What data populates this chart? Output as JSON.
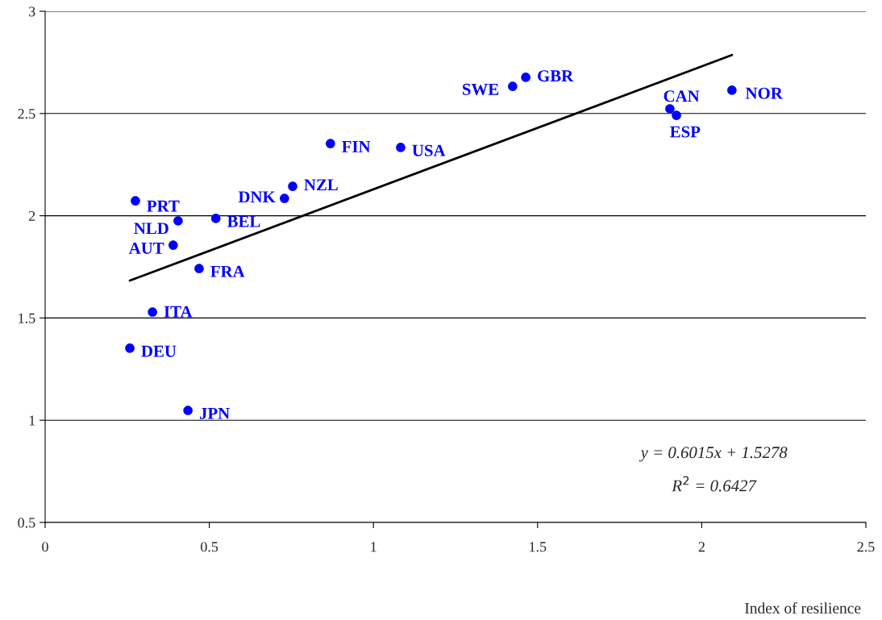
{
  "chart_data": {
    "type": "scatter",
    "xlabel": "Index of resilience",
    "xlim": [
      0,
      2.5
    ],
    "xticks": [
      0,
      0.5,
      1,
      1.5,
      2,
      2.5
    ],
    "ylim": [
      0.5,
      3
    ],
    "yticks": [
      0.5,
      1,
      1.5,
      2,
      2.5,
      3
    ],
    "grid": "y",
    "marker": "circle",
    "series": [
      {
        "color": "#0000ff",
        "x": [
          0.275,
          0.405,
          0.39,
          0.52,
          0.469,
          0.327,
          0.258,
          0.435,
          0.729,
          0.754,
          0.869,
          1.083,
          1.424,
          1.464,
          1.903,
          1.923,
          2.092
        ],
        "values": [
          2.073,
          1.975,
          1.856,
          1.987,
          1.742,
          1.529,
          1.352,
          1.048,
          2.085,
          2.144,
          2.353,
          2.334,
          2.633,
          2.677,
          2.523,
          2.491,
          2.614
        ]
      },
      {
        "type": "line",
        "color": "#000000",
        "x": [
          0.258,
          2.092
        ],
        "values": [
          1.683,
          2.786
        ],
        "marker": "none"
      }
    ],
    "annotations": [
      {
        "text": "PRT",
        "x": 0.275,
        "y": 2.073
      },
      {
        "text": "NLD",
        "x": 0.405,
        "y": 1.975
      },
      {
        "text": "AUT",
        "x": 0.39,
        "y": 1.856
      },
      {
        "text": "BEL",
        "x": 0.52,
        "y": 1.987
      },
      {
        "text": "FRA",
        "x": 0.469,
        "y": 1.742
      },
      {
        "text": "ITA",
        "x": 0.327,
        "y": 1.529
      },
      {
        "text": "DEU",
        "x": 0.258,
        "y": 1.352
      },
      {
        "text": "JPN",
        "x": 0.435,
        "y": 1.048
      },
      {
        "text": "DNK",
        "x": 0.729,
        "y": 2.085
      },
      {
        "text": "NZL",
        "x": 0.754,
        "y": 2.144
      },
      {
        "text": "FIN",
        "x": 0.869,
        "y": 2.353
      },
      {
        "text": "USA",
        "x": 1.083,
        "y": 2.334
      },
      {
        "text": "SWE",
        "x": 1.424,
        "y": 2.633
      },
      {
        "text": "GBR",
        "x": 1.464,
        "y": 2.677
      },
      {
        "text": "CAN",
        "x": 1.903,
        "y": 2.523
      },
      {
        "text": "ESP",
        "x": 1.923,
        "y": 2.491
      },
      {
        "text": "NOR",
        "x": 2.092,
        "y": 2.614
      },
      "y = 0.6015x + 1.5278",
      "R$^{2}$ = 0.6427"
    ]
  }
}
